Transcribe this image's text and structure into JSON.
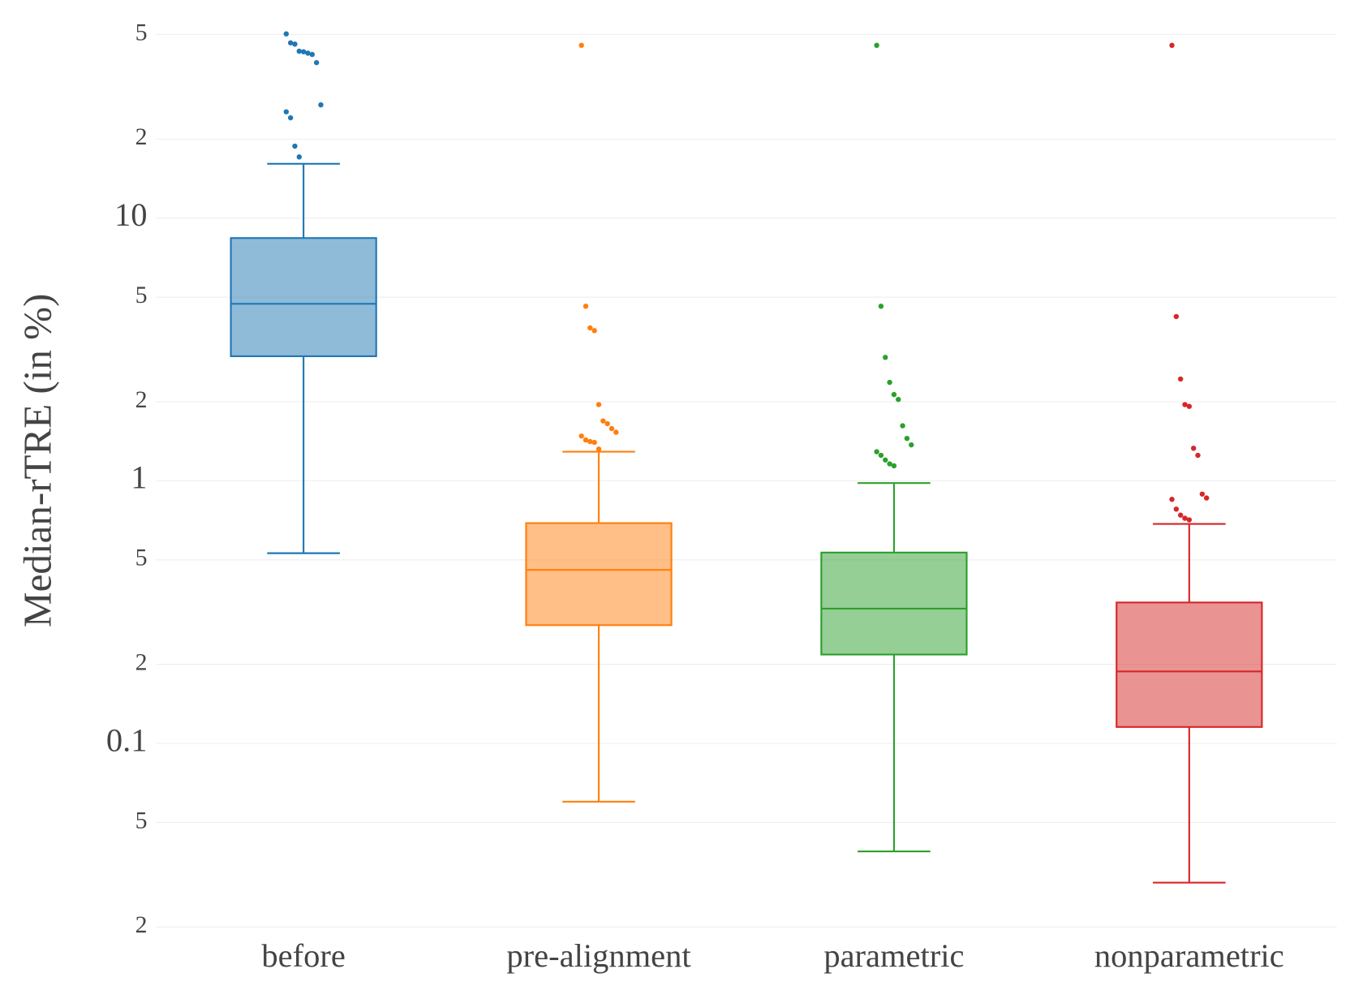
{
  "chart_data": {
    "type": "box",
    "y_label": "Median-rTRE (in %)",
    "log_scale": true,
    "grid": true,
    "categories": [
      "before",
      "pre-alignment",
      "parametric",
      "nonparametric"
    ],
    "ylim": [
      0.018,
      56
    ],
    "yticks": [
      {
        "value": 50,
        "label": "5"
      },
      {
        "value": 20,
        "label": "2"
      },
      10,
      {
        "value": 5,
        "label": "5"
      },
      {
        "value": 2,
        "label": "2"
      },
      1,
      {
        "value": 0.5,
        "label": "5"
      },
      {
        "value": 0.2,
        "label": "2"
      },
      0.1,
      {
        "value": 0.05,
        "label": "5"
      },
      {
        "value": 0.02,
        "label": "2"
      }
    ],
    "series": [
      {
        "color": "#1f77b4",
        "lower": 0.53,
        "q1": 2.98,
        "median": 4.72,
        "q3": 8.4,
        "upper": 16.1,
        "outliers": [
          50.3,
          46.5,
          46,
          43.2,
          43,
          42.5,
          42,
          39.1,
          27,
          25.4,
          24.1,
          18.8,
          17.1
        ]
      },
      {
        "color": "#ff7f0e",
        "lower": 0.06,
        "q1": 0.282,
        "median": 0.458,
        "q3": 0.69,
        "upper": 1.29,
        "outliers": [
          45.5,
          4.62,
          3.82,
          3.73,
          1.95,
          1.69,
          1.65,
          1.58,
          1.53,
          1.48,
          1.43,
          1.41,
          1.4,
          1.32
        ]
      },
      {
        "color": "#2ca02c",
        "lower": 0.0388,
        "q1": 0.218,
        "median": 0.326,
        "q3": 0.533,
        "upper": 0.98,
        "outliers": [
          45.5,
          4.62,
          2.95,
          2.37,
          2.13,
          2.04,
          1.62,
          1.45,
          1.37,
          1.29,
          1.25,
          1.2,
          1.16,
          1.14
        ]
      },
      {
        "color": "#d62728",
        "lower": 0.0295,
        "q1": 0.1155,
        "median": 0.188,
        "q3": 0.344,
        "upper": 0.685,
        "outliers": [
          45.5,
          4.22,
          2.44,
          1.95,
          1.92,
          1.33,
          1.25,
          0.89,
          0.86,
          0.85,
          0.78,
          0.74,
          0.72,
          0.71
        ]
      }
    ]
  }
}
